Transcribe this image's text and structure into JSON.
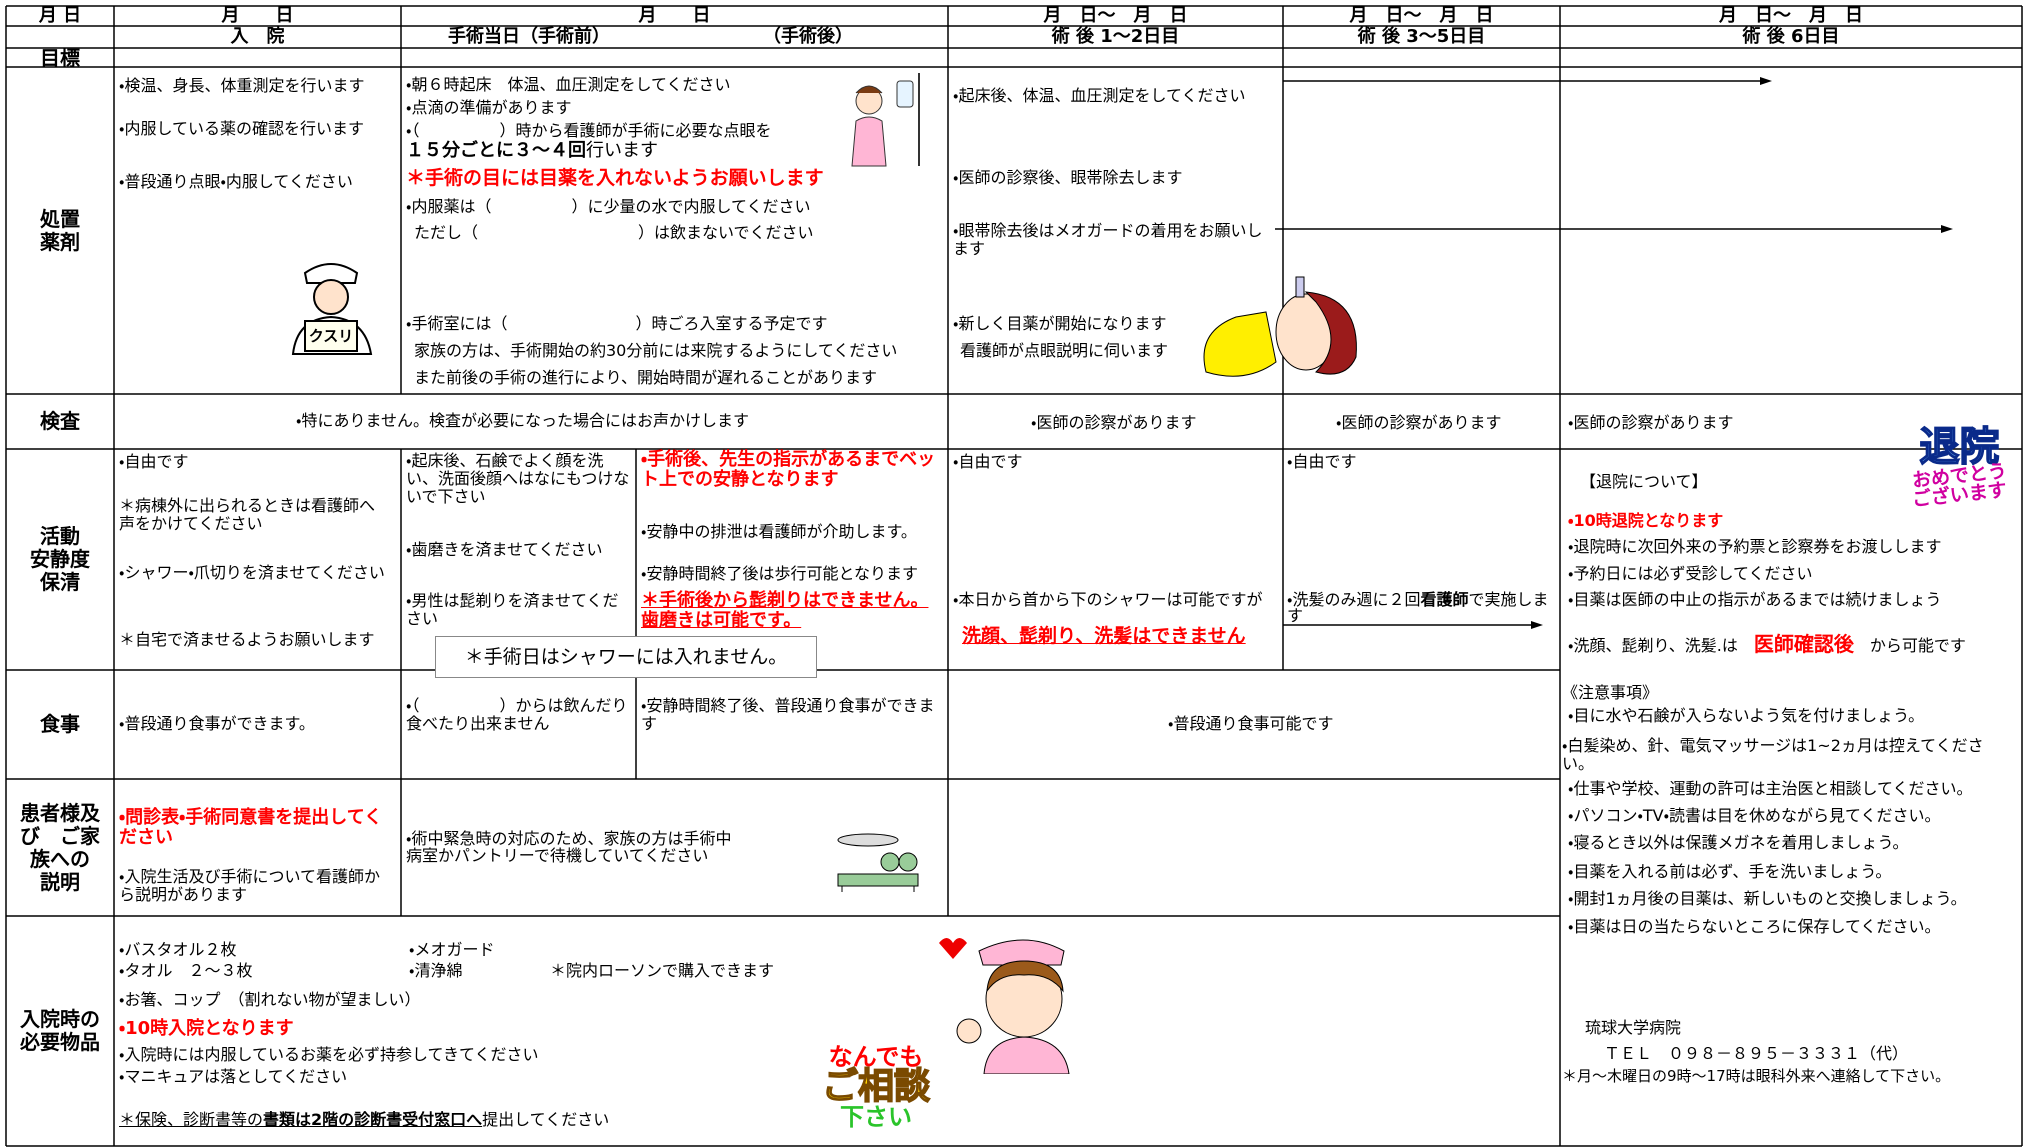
{
  "header": {
    "dates": [
      "月 日",
      "月　　日",
      "月　　日",
      "月　日～　月　日",
      "月　日～　月　日",
      "月　日～　月　日"
    ],
    "days": [
      "入　院",
      "手術当日（手術前）",
      "（手術後）",
      "術 後 1～2日目",
      "術 後 3～5日目",
      "術 後 6日目"
    ],
    "goal": "目標"
  },
  "treatment": {
    "label": "処置\n薬剤",
    "admission": [
      "・検温、身長、体重測定を行います",
      "・内服している薬の確認を行います",
      "・普段通り点眼・内服してください"
    ],
    "surgery_day": [
      "・朝６時起床　体温、血圧測定をしてください",
      "・点滴の準備があります",
      "・（　　　　　）時から看護師が手術に必要な点眼を",
      "１５分ごとに３～４回",
      "行います",
      "＊手術の目には目薬を入れないようお願いします",
      "・内服薬は（　　　　　）に少量の水で内服してください",
      "ただし（　　　　　　　　　　）は飲まないでください",
      "・手術室には（　　　　　　　　）時ごろ入室する予定です",
      "家族の方は、手術開始の約30分前には来院するようにしてください",
      "また前後の手術の進行により、開始時間が遅れることがあります"
    ],
    "post_1_2": [
      "・起床後、体温、血圧測定をしてください",
      "・医師の診察後、眼帯除去します",
      "・眼帯除去後はメオガードの着用をお願いします",
      "・新しく目薬が開始になります",
      "看護師が点眼説明に伺います"
    ]
  },
  "exam": {
    "label": "検査",
    "admission_surgery": "・特にありません。検査が必要になった場合にはお声かけします",
    "post_1_2": "・医師の診察があります",
    "post_3_5": "・医師の診察があります",
    "post_6": "・医師の診察があります"
  },
  "activity": {
    "label": "活動\n安静度\n保清",
    "admission": [
      "・自由です",
      "＊病棟外に出られるときは看護師へ声をかけてください",
      "・シャワー・爪切りを済ませてください",
      "＊自宅で済ませるようお願いします"
    ],
    "before_surgery": [
      "・起床後、石鹸でよく顔を洗い、洗面後顔へはなにもつけないで下さい",
      "・歯磨きを済ませてください",
      "・男性は髭剃りを済ませてください"
    ],
    "after_surgery": [
      "・手術後、先生の指示があるまでベット上での安静となります",
      "・安静中の排泄は看護師が介助します。",
      "・安静時間終了後は歩行可能となります",
      "＊手術後から髭剃りはできません。歯磨きは可能です。"
    ],
    "surgery_note": "＊手術日はシャワーには入れません。",
    "post_1_2": [
      "・自由です",
      "・本日から首から下のシャワーは可能ですが",
      "洗顔、髭剃り、洗髪はできません"
    ],
    "post_3_5": [
      "・自由です",
      "・洗髪のみ週に２回",
      "看護師",
      "で実施します"
    ],
    "post_6": [
      "【退院について】",
      "・10時退院となります",
      "・退院時に次回外来の予約票と診察券をお渡しします",
      "・予約日には必ず受診してください",
      "・目薬は医師の中止の指示があるまでは続けましょう",
      "・洗顔、髭剃り、洗髪.は",
      "医師確認後",
      "から可能です"
    ]
  },
  "meal": {
    "label": "食事",
    "admission": "・普段通り食事ができます。",
    "before_surgery": "・（　　　　　）からは飲んだり食べたり出来ません",
    "after_surgery": "・安静時間終了後、普段通り食事ができます",
    "post": "・普段通り食事可能です"
  },
  "explanation": {
    "label": "患者様及\nび　ご家\n族への\n説明",
    "admission": [
      "・問診表・手術同意書を提出してください",
      "・入院生活及び手術について看護師から説明があります"
    ],
    "surgery_day": [
      "・術中緊急時の対応のため、家族の方は手術中",
      "病室かパントリーで待機していてください"
    ]
  },
  "items": {
    "label": "入院時の\n必要物品",
    "list": [
      "・バスタオル２枚",
      "・タオル　２～３枚",
      "・メオガード",
      "・清浄綿",
      "＊院内ローソンで購入できます",
      "・お箸、コップ　（割れない物が望ましい）",
      "・10時入院となります",
      "・入院時には内服しているお薬を必ず持参してきてください",
      "・マニキュアは落としてください",
      "＊保険、診断書等の",
      "書類は2階の診断書受付窓口へ",
      "提出してください"
    ]
  },
  "notes": {
    "title": "《注意事項》",
    "list": [
      "・目に水や石鹸が入らないよう気を付けましょう。",
      "・白髪染め、針、電気マッサージは1~2ヵ月は控えてください。",
      "・仕事や学校、運動の許可は主治医と相談してください。",
      "・パソコン・TV・読書は目を休めながら見てください。",
      "・寝るとき以外は保護メガネを着用しましょう。",
      "・目薬を入れる前は必ず、手を洗いましょう。",
      "・開封1ヵ月後の目薬は、新しいものと交換しましょう。",
      "・目薬は日の当たらないところに保存してください。"
    ],
    "hospital": "琉球大学病院",
    "tel": "ＴＥＬ　０９８－８９５－３３３１（代）",
    "contact": "＊月～木曜日の9時～17時は眼科外来へ連絡して下さい。"
  },
  "illustrations": {
    "medicine_sign": "クスリ",
    "discharge": [
      "退院",
      "おめでとう",
      "ございます"
    ],
    "consult": [
      "なんでも",
      "ご相談",
      "下さい"
    ]
  }
}
